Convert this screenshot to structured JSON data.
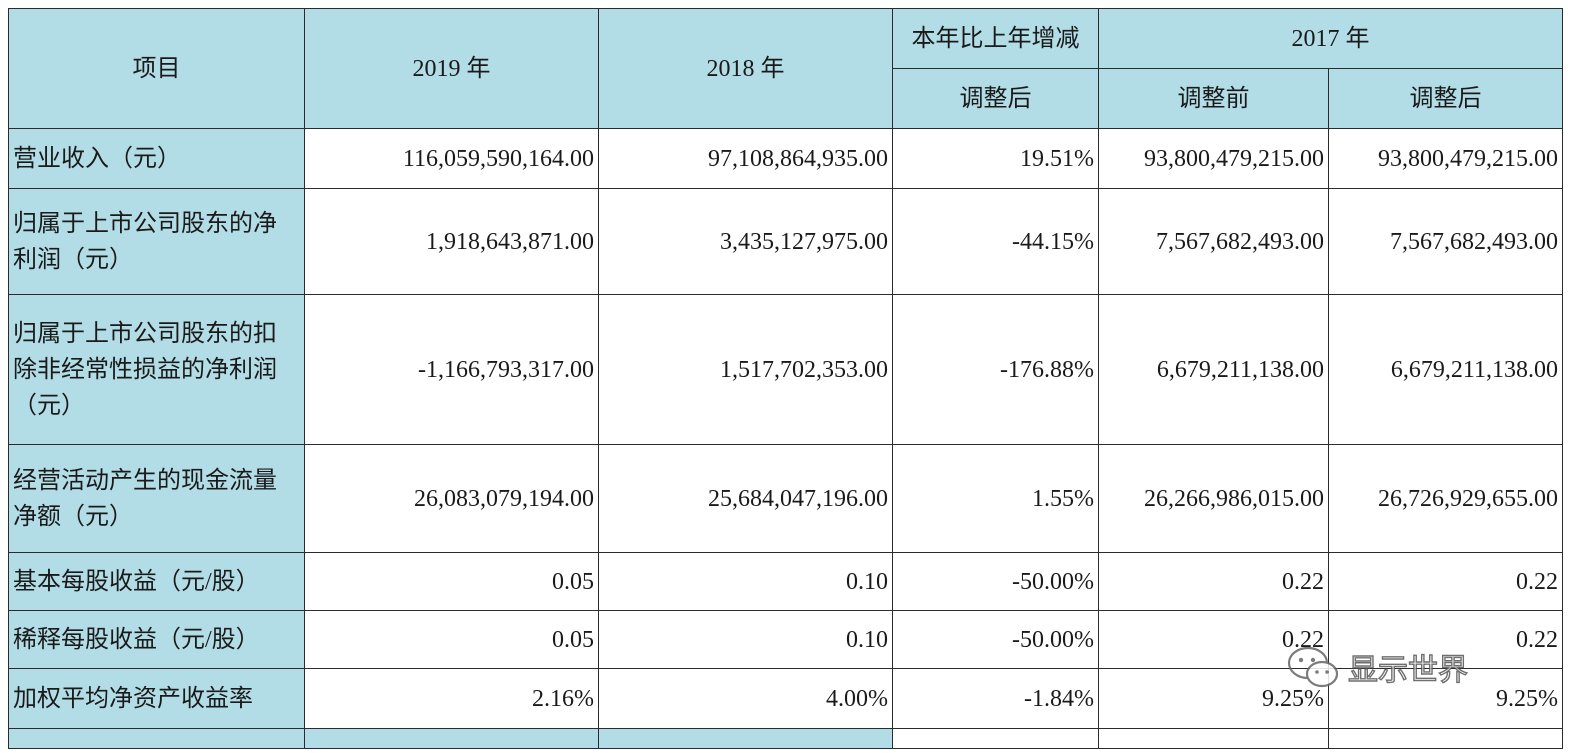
{
  "header": {
    "item": "项目",
    "y2019": "2019 年",
    "y2018": "2018 年",
    "change": "本年比上年增减",
    "y2017": "2017 年",
    "change_adjusted": "调整后",
    "before_adjust": "调整前",
    "after_adjust": "调整后"
  },
  "rows": [
    {
      "label": "营业收入（元）",
      "v2019": "116,059,590,164.00",
      "v2018": "97,108,864,935.00",
      "change": "19.51%",
      "before": "93,800,479,215.00",
      "after": "93,800,479,215.00"
    },
    {
      "label": "归属于上市公司股东的净利润（元）",
      "v2019": "1,918,643,871.00",
      "v2018": "3,435,127,975.00",
      "change": "-44.15%",
      "before": "7,567,682,493.00",
      "after": "7,567,682,493.00"
    },
    {
      "label": "归属于上市公司股东的扣除非经常性损益的净利润（元）",
      "v2019": "-1,166,793,317.00",
      "v2018": "1,517,702,353.00",
      "change": "-176.88%",
      "before": "6,679,211,138.00",
      "after": "6,679,211,138.00"
    },
    {
      "label": "经营活动产生的现金流量净额（元）",
      "v2019": "26,083,079,194.00",
      "v2018": "25,684,047,196.00",
      "change": "1.55%",
      "before": "26,266,986,015.00",
      "after": "26,726,929,655.00"
    },
    {
      "label": "基本每股收益（元/股）",
      "v2019": "0.05",
      "v2018": "0.10",
      "change": "-50.00%",
      "before": "0.22",
      "after": "0.22"
    },
    {
      "label": "稀释每股收益（元/股）",
      "v2019": "0.05",
      "v2018": "0.10",
      "change": "-50.00%",
      "before": "0.22",
      "after": "0.22"
    },
    {
      "label": "加权平均净资产收益率",
      "v2019": "2.16%",
      "v2018": "4.00%",
      "change": "-1.84%",
      "before": "9.25%",
      "after": "9.25%"
    }
  ],
  "watermark": {
    "text": "显示世界",
    "icon": "wechat-icon"
  }
}
